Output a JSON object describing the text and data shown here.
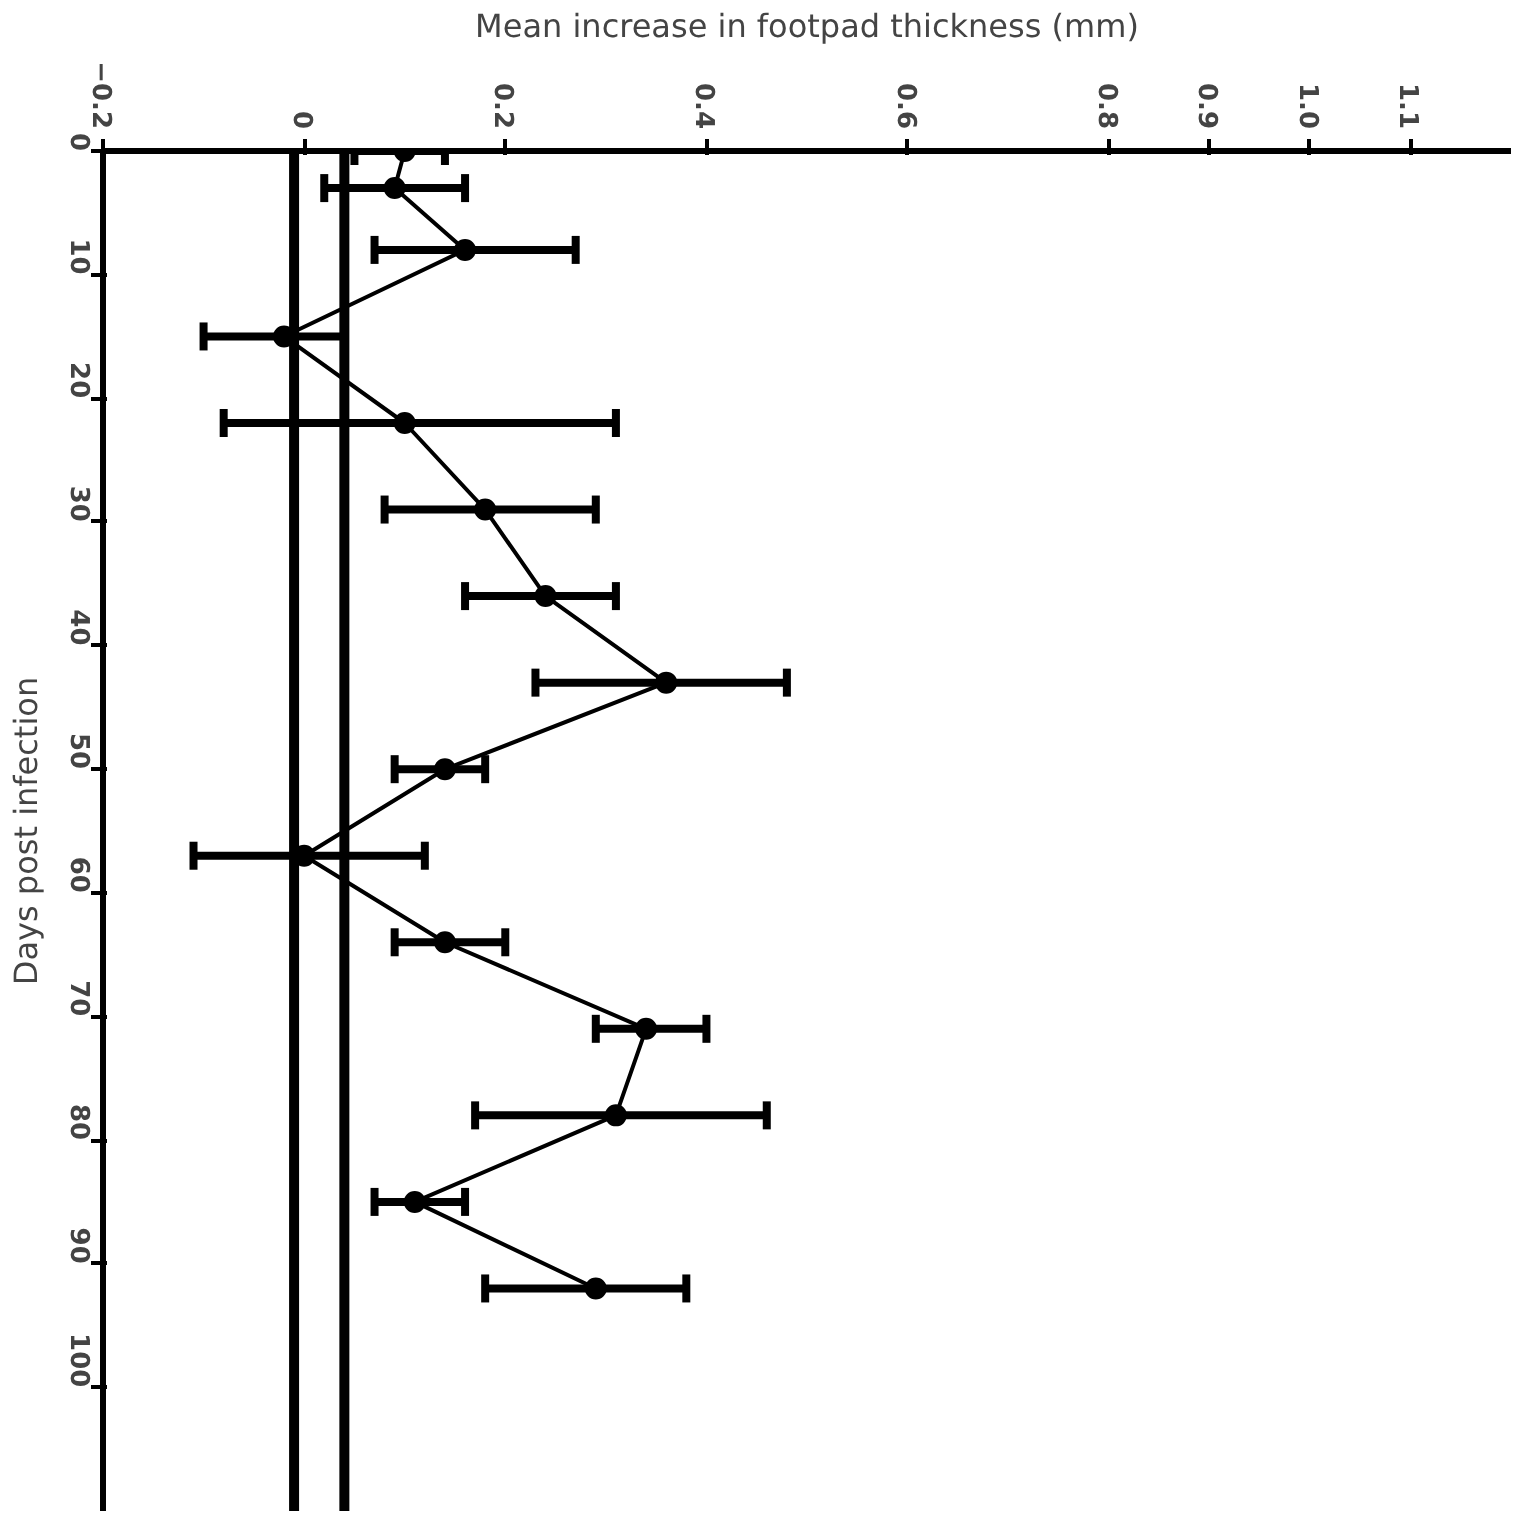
{
  "chart_data": {
    "type": "line",
    "orientation": "horizontal",
    "xlabel": "Mean increase in footpad thickness (mm)",
    "ylabel": "Days post infection",
    "x": [
      0,
      3,
      8,
      15,
      22,
      29,
      36,
      43,
      50,
      57,
      64,
      71,
      78,
      85,
      92
    ],
    "series": [
      {
        "color": "#000000",
        "values": [
          0.1,
          0.09,
          0.16,
          -0.02,
          0.1,
          0.18,
          0.24,
          0.36,
          0.14,
          0.0,
          0.14,
          0.34,
          0.31,
          0.11,
          0.29
        ],
        "errors": [
          [
            0.05,
            0.14
          ],
          [
            0.02,
            0.16
          ],
          [
            0.07,
            0.27
          ],
          [
            -0.1,
            0.04
          ],
          [
            -0.08,
            0.31
          ],
          [
            0.08,
            0.29
          ],
          [
            0.16,
            0.31
          ],
          [
            0.23,
            0.48
          ],
          [
            0.09,
            0.18
          ],
          [
            -0.11,
            0.12
          ],
          [
            0.09,
            0.2
          ],
          [
            0.29,
            0.4
          ],
          [
            0.17,
            0.46
          ],
          [
            0.07,
            0.16
          ],
          [
            0.18,
            0.38
          ]
        ]
      }
    ],
    "xlim": [
      -0.2,
      1.2
    ],
    "xticks": [
      -0.2,
      0,
      0.2,
      0.4,
      0.6,
      0.8,
      0.9,
      {
        "value": 1.0,
        "label": "1.0"
      },
      1.1
    ],
    "ylim": [
      110,
      0
    ],
    "yticks": [
      0,
      10,
      20,
      30,
      40,
      50,
      60,
      70,
      80,
      90,
      100
    ],
    "ref_lines": [
      {
        "axis": "x",
        "value": -0.01,
        "color": "#000000"
      },
      {
        "axis": "x",
        "value": 0.04,
        "color": "#000000"
      }
    ],
    "marker": "circle",
    "line_style": "solid",
    "grid": false
  }
}
